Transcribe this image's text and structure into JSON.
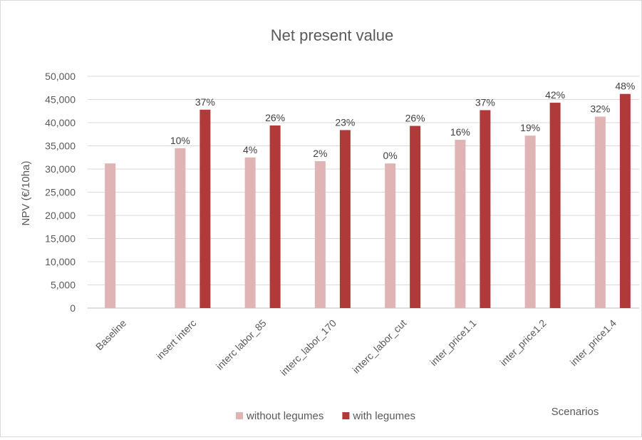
{
  "chart_data": {
    "type": "bar",
    "title": "Net present value",
    "xlabel": "Scenarios",
    "ylabel": "NPV (€/10ha)",
    "ylim": [
      0,
      50000
    ],
    "yticks": [
      0,
      5000,
      10000,
      15000,
      20000,
      25000,
      30000,
      35000,
      40000,
      45000,
      50000
    ],
    "ytick_labels": [
      "0",
      "5,000",
      "10,000",
      "15,000",
      "20,000",
      "25,000",
      "30,000",
      "35,000",
      "40,000",
      "45,000",
      "50,000"
    ],
    "grid": true,
    "legend_position": "bottom",
    "categories": [
      "Baseline",
      "insert interc",
      "interc labor_85",
      "interc_labor_170",
      "interc_labor_cut",
      "inter_price1.1",
      "inter_price1.2",
      "inter_price1.4"
    ],
    "series": [
      {
        "name": "without legumes",
        "color": "#e0b4b4",
        "values": [
          31200,
          34500,
          32500,
          31700,
          31200,
          36300,
          37200,
          41300
        ],
        "labels": [
          "",
          "10%",
          "4%",
          "2%",
          "0%",
          "16%",
          "19%",
          "32%"
        ]
      },
      {
        "name": "with legumes",
        "color": "#b03a3a",
        "values": [
          null,
          42800,
          39400,
          38400,
          39300,
          42700,
          44300,
          46200
        ],
        "labels": [
          "",
          "37%",
          "26%",
          "23%",
          "26%",
          "37%",
          "42%",
          "48%"
        ]
      }
    ]
  }
}
